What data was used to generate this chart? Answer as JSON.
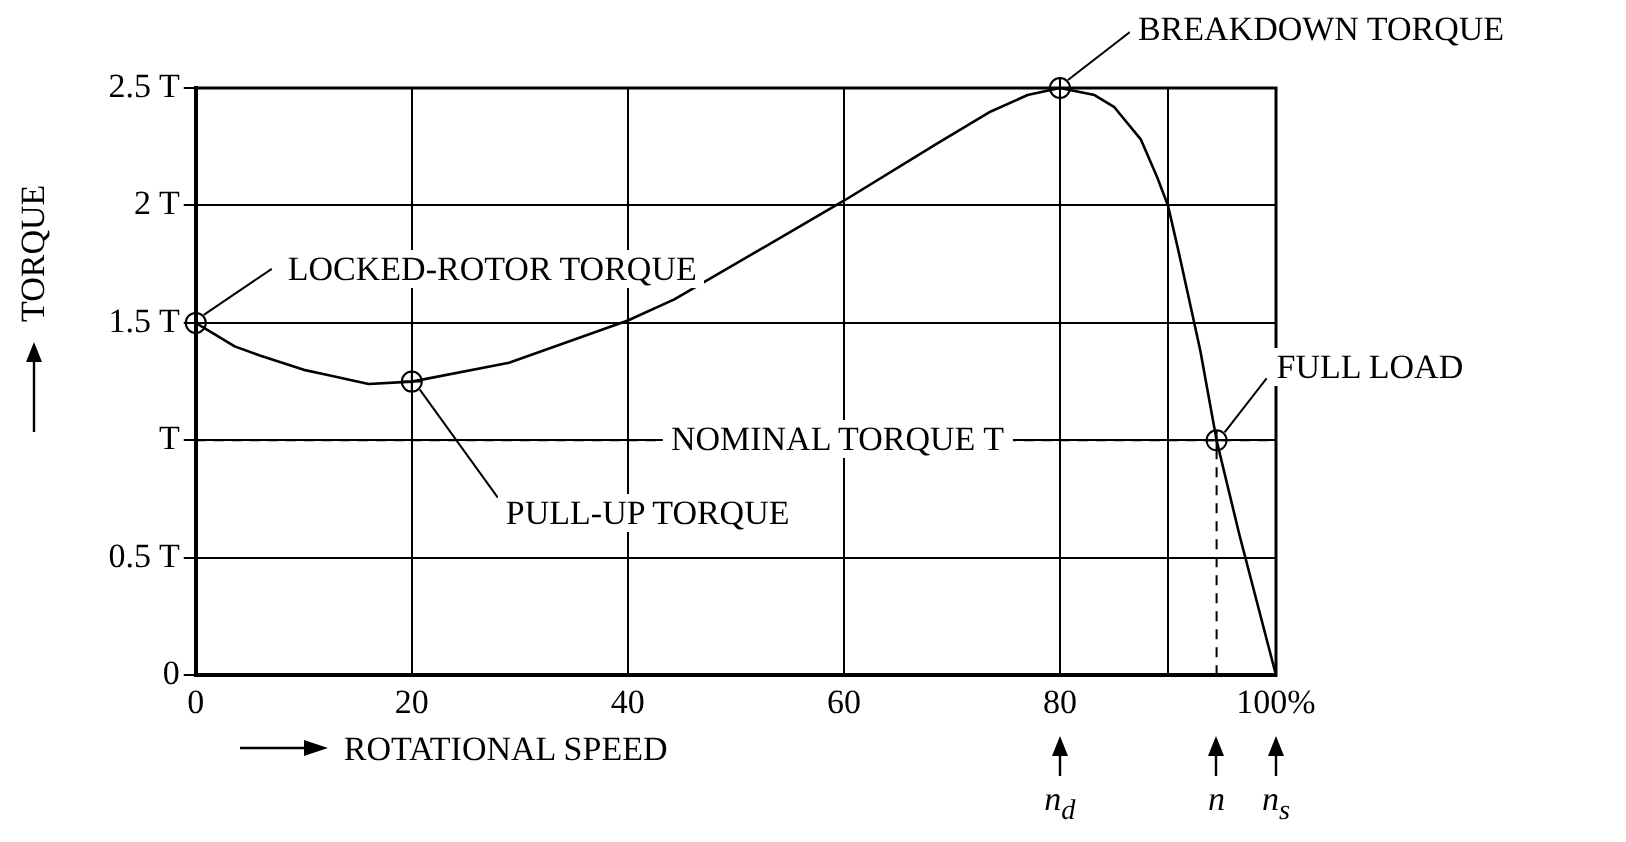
{
  "chart_data": {
    "type": "line",
    "xlabel": "ROTATIONAL SPEED",
    "ylabel": "TORQUE",
    "x": [
      0,
      3.6,
      6,
      10,
      12,
      16,
      20,
      29,
      40,
      44.3,
      60,
      68.5,
      73.6,
      77,
      80,
      83.2,
      85,
      87.5,
      89,
      90,
      91,
      92.1,
      93,
      94.5,
      96.6,
      100
    ],
    "series": [
      {
        "color": "#000000",
        "values": [
          1.5,
          1.4,
          1.36,
          1.3,
          1.28,
          1.24,
          1.25,
          1.33,
          1.51,
          1.6,
          2.02,
          2.26,
          2.4,
          2.47,
          2.5,
          2.47,
          2.42,
          2.28,
          2.12,
          2.0,
          1.8,
          1.57,
          1.38,
          1.0,
          0.6,
          0
        ]
      }
    ],
    "xlim": [
      0,
      100
    ],
    "ylim": [
      0,
      2.5
    ],
    "xticks": [
      0,
      20,
      40,
      60,
      80,
      {
        "value": 90,
        "label": null
      },
      {
        "value": 100,
        "label": "100%"
      }
    ],
    "yticks": [
      {
        "value": 0,
        "label": "0"
      },
      {
        "value": 0.5,
        "label": "0.5 T"
      },
      {
        "value": 1,
        "label": "T"
      },
      {
        "value": 1.5,
        "label": "1.5 T"
      },
      {
        "value": 2,
        "label": "2 T"
      },
      {
        "value": 2.5,
        "label": "2.5 T"
      }
    ],
    "grid": true,
    "marker": "none",
    "line_style": "solid",
    "legend": false,
    "ref_lines": [
      {
        "axis": "y",
        "value": 1,
        "label": "NOMINAL TORQUE T",
        "line_style": "dashed",
        "color": "#000000"
      },
      {
        "axis": "x",
        "value": 94.5,
        "line_style": "dashed",
        "color": "#000000"
      }
    ],
    "annotations": [
      {
        "text": "LOCKED-ROTOR TORQUE",
        "x": 0,
        "y": 1.5
      },
      {
        "text": "PULL-UP TORQUE",
        "x": 20,
        "y": 1.25
      },
      {
        "text": "BREAKDOWN TORQUE",
        "x": 80,
        "y": 2.5
      },
      {
        "text": "FULL LOAD",
        "x": 94.5,
        "y": 1.0
      },
      "n$_{d}$",
      "n",
      "n$_{s}$"
    ]
  }
}
